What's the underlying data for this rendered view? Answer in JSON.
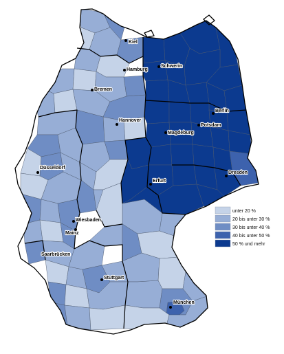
{
  "colors": {
    "class_1": "#c5d3e8",
    "class_2": "#97aed6",
    "class_3": "#6f8dc4",
    "class_4": "#3d62ad",
    "class_5": "#0c3a8f",
    "border": "#000000"
  },
  "legend": [
    {
      "label": "unter 20 %",
      "color_key": "class_1"
    },
    {
      "label": "20 bis unter 30 %",
      "color_key": "class_2"
    },
    {
      "label": "30 bis unter 40 %",
      "color_key": "class_3"
    },
    {
      "label": "40 bis unter 50 %",
      "color_key": "class_4"
    },
    {
      "label": "50 % und mehr",
      "color_key": "class_5"
    }
  ],
  "cities": [
    {
      "id": "kiel",
      "name": "Kiel"
    },
    {
      "id": "hamburg",
      "name": "Hamburg"
    },
    {
      "id": "schwerin",
      "name": "Schwerin"
    },
    {
      "id": "bremen",
      "name": "Bremen"
    },
    {
      "id": "hannover",
      "name": "Hannover"
    },
    {
      "id": "berlin",
      "name": "Berlin"
    },
    {
      "id": "potsdam",
      "name": "Potsdam"
    },
    {
      "id": "magdeburg",
      "name": "Magdeburg"
    },
    {
      "id": "duesseldorf",
      "name": "Düsseldorf"
    },
    {
      "id": "erfurt",
      "name": "Erfurt"
    },
    {
      "id": "dresden",
      "name": "Dresden"
    },
    {
      "id": "wiesbaden",
      "name": "Wiesbaden"
    },
    {
      "id": "mainz",
      "name": "Mainz"
    },
    {
      "id": "saarbruecken",
      "name": "Saarbrücken"
    },
    {
      "id": "stuttgart",
      "name": "Stuttgart"
    },
    {
      "id": "muenchen",
      "name": "München"
    }
  ]
}
